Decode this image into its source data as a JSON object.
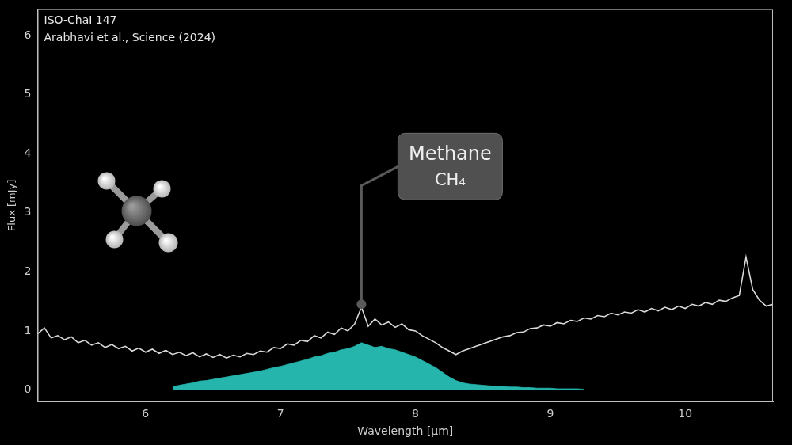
{
  "chart_data": {
    "type": "line",
    "title": "ISO-ChaI 147",
    "subtitle": "Arabhavi et al., Science (2024)",
    "x_label": "Wavelength [μm]",
    "y_label": "Flux [mJy]",
    "x": [
      5.2,
      5.25,
      5.3,
      5.35,
      5.4,
      5.45,
      5.5,
      5.55,
      5.6,
      5.65,
      5.7,
      5.75,
      5.8,
      5.85,
      5.9,
      5.95,
      6.0,
      6.05,
      6.1,
      6.15,
      6.2,
      6.25,
      6.3,
      6.35,
      6.4,
      6.45,
      6.5,
      6.55,
      6.6,
      6.65,
      6.7,
      6.75,
      6.8,
      6.85,
      6.9,
      6.95,
      7.0,
      7.05,
      7.1,
      7.15,
      7.2,
      7.25,
      7.3,
      7.35,
      7.4,
      7.45,
      7.5,
      7.55,
      7.6,
      7.65,
      7.7,
      7.75,
      7.8,
      7.85,
      7.9,
      7.95,
      8.0,
      8.05,
      8.1,
      8.15,
      8.2,
      8.25,
      8.3,
      8.35,
      8.4,
      8.45,
      8.5,
      8.55,
      8.6,
      8.65,
      8.7,
      8.75,
      8.8,
      8.85,
      8.9,
      8.95,
      9.0,
      9.05,
      9.1,
      9.15,
      9.2,
      9.25,
      9.3,
      9.35,
      9.4,
      9.45,
      9.5,
      9.55,
      9.6,
      9.65,
      9.7,
      9.75,
      9.8,
      9.85,
      9.9,
      9.95,
      10.0,
      10.05,
      10.1,
      10.15,
      10.2,
      10.25,
      10.3,
      10.35,
      10.4,
      10.45,
      10.5,
      10.55,
      10.6,
      10.65
    ],
    "series": [
      {
        "type": "area",
        "color": "#25b5ad",
        "values": [
          null,
          null,
          null,
          null,
          null,
          null,
          null,
          null,
          null,
          null,
          null,
          null,
          null,
          null,
          null,
          null,
          null,
          null,
          null,
          null,
          0.05,
          0.08,
          0.1,
          0.12,
          0.15,
          0.16,
          0.18,
          0.2,
          0.22,
          0.24,
          0.26,
          0.28,
          0.3,
          0.32,
          0.35,
          0.38,
          0.4,
          0.43,
          0.46,
          0.49,
          0.52,
          0.56,
          0.58,
          0.62,
          0.64,
          0.68,
          0.7,
          0.74,
          0.8,
          0.76,
          0.72,
          0.74,
          0.7,
          0.68,
          0.64,
          0.6,
          0.56,
          0.5,
          0.44,
          0.38,
          0.3,
          0.22,
          0.16,
          0.12,
          0.1,
          0.09,
          0.08,
          0.07,
          0.06,
          0.06,
          0.05,
          0.05,
          0.04,
          0.04,
          0.03,
          0.03,
          0.03,
          0.02,
          0.02,
          0.02,
          0.02,
          0.01,
          null,
          null,
          null,
          null,
          null,
          null,
          null,
          null,
          null,
          null,
          null,
          null,
          null,
          null,
          null,
          null,
          null,
          null,
          null,
          null,
          null,
          null,
          null,
          null,
          null,
          null,
          null,
          null
        ]
      },
      {
        "type": "line",
        "color": "#d9d9d9",
        "values": [
          0.95,
          1.05,
          0.88,
          0.92,
          0.85,
          0.9,
          0.8,
          0.84,
          0.76,
          0.8,
          0.72,
          0.77,
          0.7,
          0.74,
          0.66,
          0.71,
          0.64,
          0.69,
          0.62,
          0.67,
          0.6,
          0.64,
          0.58,
          0.63,
          0.56,
          0.61,
          0.55,
          0.6,
          0.54,
          0.59,
          0.56,
          0.62,
          0.6,
          0.66,
          0.64,
          0.72,
          0.7,
          0.78,
          0.76,
          0.84,
          0.82,
          0.92,
          0.88,
          0.98,
          0.94,
          1.05,
          1.0,
          1.12,
          1.4,
          1.08,
          1.2,
          1.1,
          1.15,
          1.06,
          1.12,
          1.02,
          1.0,
          0.92,
          0.86,
          0.8,
          0.72,
          0.66,
          0.6,
          0.66,
          0.7,
          0.74,
          0.78,
          0.82,
          0.86,
          0.9,
          0.92,
          0.97,
          0.98,
          1.04,
          1.05,
          1.1,
          1.08,
          1.14,
          1.12,
          1.18,
          1.16,
          1.22,
          1.2,
          1.26,
          1.24,
          1.3,
          1.27,
          1.32,
          1.3,
          1.36,
          1.32,
          1.38,
          1.34,
          1.4,
          1.36,
          1.42,
          1.38,
          1.45,
          1.42,
          1.48,
          1.45,
          1.52,
          1.5,
          1.56,
          1.6,
          2.25,
          1.7,
          1.52,
          1.42,
          1.45
        ]
      }
    ],
    "annotations": [
      {
        "label": "Methane",
        "formula": "CH₄",
        "x": 7.6,
        "y": 1.45
      }
    ],
    "xlim": [
      5.2,
      10.65
    ],
    "xticks": [
      6,
      7,
      8,
      9,
      10
    ],
    "ylim": [
      -0.2,
      6.45
    ],
    "yticks": [
      0,
      1,
      2,
      3,
      4,
      5,
      6
    ],
    "grid": false
  }
}
